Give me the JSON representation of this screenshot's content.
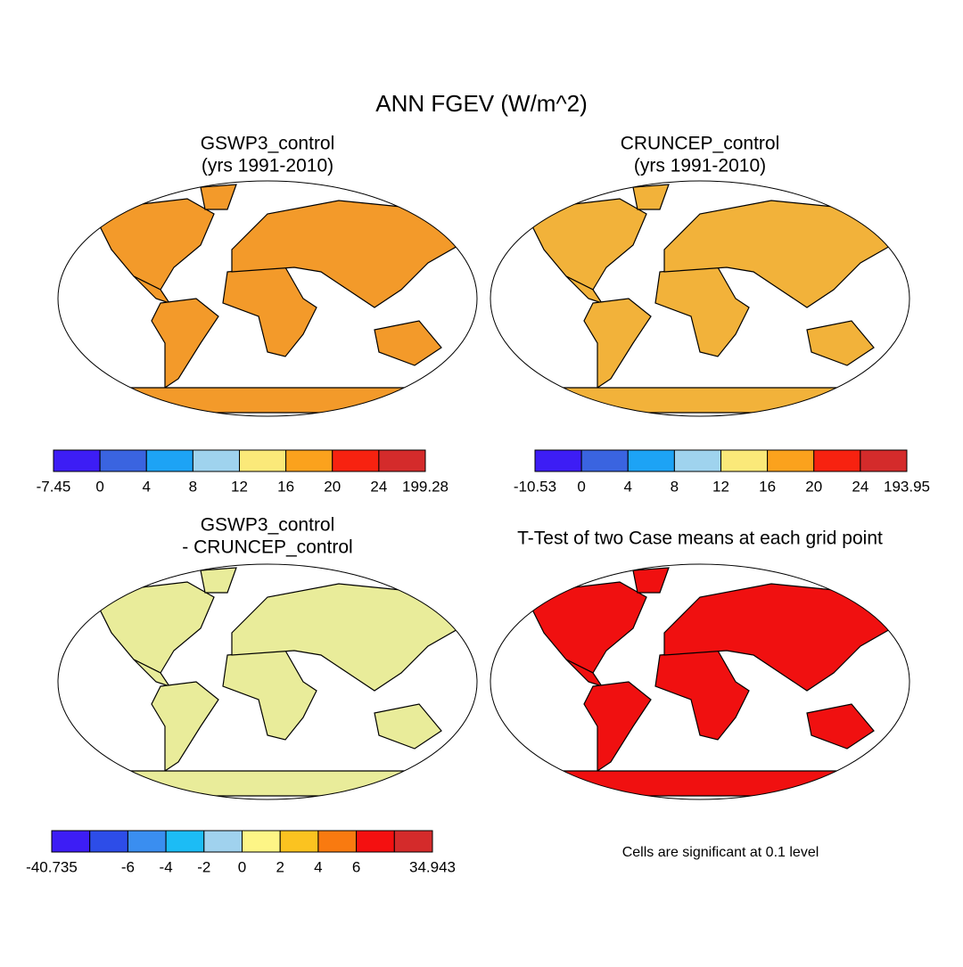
{
  "title": "ANN FGEV (W/m^2)",
  "panels": [
    {
      "title": [
        "GSWP3_control",
        "(yrs 1991-2010)"
      ],
      "colorbar": {
        "colors": [
          "#3d1df5",
          "#3a64e0",
          "#1da3f5",
          "#9fd3ee",
          "#fbe979",
          "#fba21d",
          "#f72210",
          "#d42b2b"
        ],
        "labels": [
          -7.45,
          0,
          4,
          8,
          12,
          16,
          20,
          24,
          199.28
        ]
      }
    },
    {
      "title": [
        "CRUNCEP_control",
        "(yrs 1991-2010)"
      ],
      "colorbar": {
        "colors": [
          "#3d1df5",
          "#3a64e0",
          "#1da3f5",
          "#9fd3ee",
          "#fbe979",
          "#fba21d",
          "#f72210",
          "#d42b2b"
        ],
        "labels": [
          -10.53,
          0,
          4,
          8,
          12,
          16,
          20,
          24,
          193.95
        ]
      }
    },
    {
      "title": [
        "GSWP3_control",
        "- CRUNCEP_control"
      ],
      "colorbar": {
        "colors": [
          "#3d1df5",
          "#2d4de8",
          "#3a8ef0",
          "#1cbcf5",
          "#a0d2ee",
          "#fdf586",
          "#fbc320",
          "#f97a10",
          "#f41010",
          "#d42b2b"
        ],
        "labels": [
          -40.735,
          null,
          -6,
          -4,
          -2,
          0,
          2,
          4,
          6,
          null,
          34.943
        ]
      }
    },
    {
      "title": [
        "T-Test of two Case means at each grid point"
      ],
      "note": "Cells are significant at 0.1 level"
    }
  ]
}
